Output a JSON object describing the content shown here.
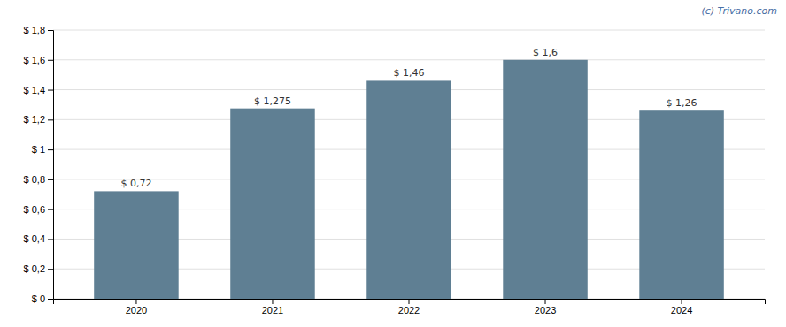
{
  "chart_data": {
    "type": "bar",
    "categories": [
      "2020",
      "2021",
      "2022",
      "2023",
      "2024"
    ],
    "values": [
      0.72,
      1.275,
      1.46,
      1.6,
      1.26
    ],
    "value_labels": [
      "$ 0,72",
      "$ 1,275",
      "$ 1,46",
      "$ 1,6",
      "$ 1,26"
    ],
    "color": "#5f7f93",
    "ylim": [
      0,
      1.8
    ],
    "yticks": [
      {
        "value": 0,
        "label": "$ 0"
      },
      {
        "value": 0.2,
        "label": "$ 0,2"
      },
      {
        "value": 0.4,
        "label": "$ 0,4"
      },
      {
        "value": 0.6,
        "label": "$ 0,6"
      },
      {
        "value": 0.8,
        "label": "$ 0,8"
      },
      {
        "value": 1.0,
        "label": "$ 1"
      },
      {
        "value": 1.2,
        "label": "$ 1,2"
      },
      {
        "value": 1.4,
        "label": "$ 1,4"
      },
      {
        "value": 1.6,
        "label": "$ 1,6"
      },
      {
        "value": 1.8,
        "label": "$ 1,8"
      }
    ],
    "grid": true,
    "annotations": [
      "(c) Trivano.com"
    ]
  }
}
